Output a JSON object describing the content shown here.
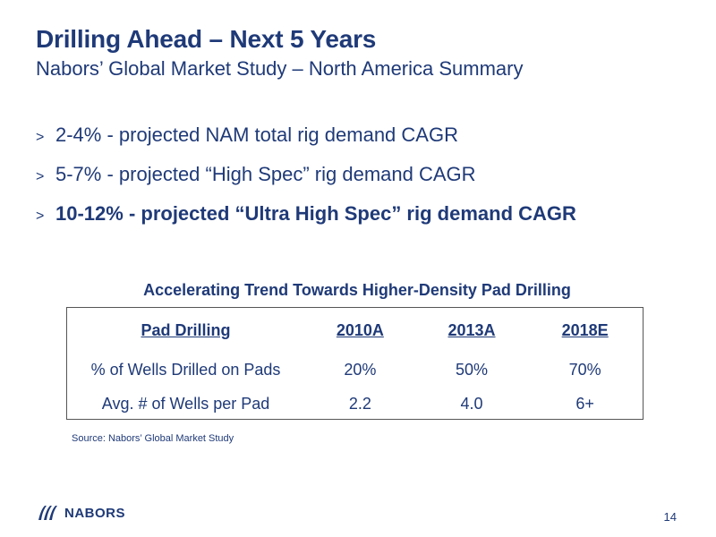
{
  "header": {
    "title": "Drilling Ahead – Next 5 Years",
    "subtitle": "Nabors’ Global Market Study – North America Summary"
  },
  "bullets": [
    {
      "marker": ">",
      "text": "2-4% - projected NAM total rig demand CAGR"
    },
    {
      "marker": ">",
      "text": "5-7% - projected “High Spec” rig demand CAGR"
    },
    {
      "marker": ">",
      "text": "10-12%  - projected “Ultra High Spec” rig demand CAGR"
    }
  ],
  "table": {
    "title": "Accelerating Trend Towards Higher-Density Pad Drilling",
    "headers": [
      "Pad Drilling",
      "2010A",
      "2013A",
      "2018E"
    ],
    "rows": [
      [
        "% of Wells Drilled on Pads",
        "20%",
        "50%",
        "70%"
      ],
      [
        "Avg. # of Wells per Pad",
        "2.2",
        "4.0",
        "6+"
      ]
    ]
  },
  "source": "Source: Nabors’ Global Market Study",
  "logo": {
    "wordmark": "NABORS",
    "icon": "nabors-logo-icon"
  },
  "page_number": "14",
  "colors": {
    "text": "#1f3a78",
    "background": "#ffffff",
    "table_border": "#555555"
  }
}
